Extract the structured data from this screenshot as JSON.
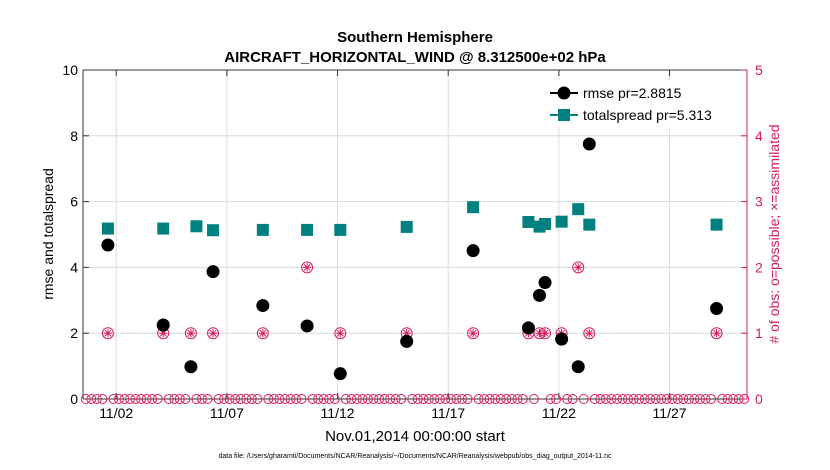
{
  "chart_data": {
    "type": "scatter",
    "title_line1": "Southern Hemisphere",
    "title_line2": "AIRCRAFT_HORIZONTAL_WIND @ 8.312500e+02 hPa",
    "xlabel": "Nov.01,2014 00:00:00 start",
    "ylabel_left": "rmse and totalspread",
    "ylabel_right": "# of obs: o=possible; ×=assimilated",
    "xlim": [
      0.5,
      30.5
    ],
    "ylim_left": [
      0,
      10
    ],
    "ylim_right": [
      0,
      5
    ],
    "x_ticks": [
      {
        "value": 2,
        "label": "11/02"
      },
      {
        "value": 7,
        "label": "11/07"
      },
      {
        "value": 12,
        "label": "11/12"
      },
      {
        "value": 17,
        "label": "11/17"
      },
      {
        "value": 22,
        "label": "11/22"
      },
      {
        "value": 27,
        "label": "11/27"
      }
    ],
    "y_ticks_left": [
      {
        "value": 0,
        "label": "0"
      },
      {
        "value": 2,
        "label": "2"
      },
      {
        "value": 4,
        "label": "4"
      },
      {
        "value": 6,
        "label": "6"
      },
      {
        "value": 8,
        "label": "8"
      },
      {
        "value": 10,
        "label": "10"
      }
    ],
    "y_ticks_right": [
      {
        "value": 0,
        "label": "0"
      },
      {
        "value": 1,
        "label": "1"
      },
      {
        "value": 2,
        "label": "2"
      },
      {
        "value": 3,
        "label": "3"
      },
      {
        "value": 4,
        "label": "4"
      },
      {
        "value": 5,
        "label": "5"
      }
    ],
    "legend": [
      {
        "name": "rmse pr=2.8815",
        "color": "#000000",
        "marker": "circle"
      },
      {
        "name": "totalspread pr=5.313",
        "color": "#008080",
        "marker": "square"
      }
    ],
    "series": [
      {
        "name": "rmse",
        "color": "#000000",
        "x": [
          1.625,
          4.125,
          5.375,
          6.375,
          8.625,
          10.625,
          12.125,
          15.125,
          18.125,
          20.625,
          21.125,
          21.375,
          22.125,
          22.875,
          23.375,
          29.125
        ],
        "y": [
          4.68,
          2.25,
          0.98,
          3.87,
          2.84,
          2.22,
          0.77,
          1.75,
          4.51,
          2.16,
          3.15,
          3.54,
          1.82,
          0.98,
          7.75,
          2.75
        ]
      },
      {
        "name": "totalspread",
        "color": "#008080",
        "x": [
          1.625,
          4.125,
          5.625,
          6.375,
          8.625,
          10.625,
          12.125,
          15.125,
          18.125,
          20.625,
          21.125,
          21.375,
          22.125,
          22.875,
          23.375,
          29.125
        ],
        "y": [
          5.18,
          5.18,
          5.25,
          5.13,
          5.14,
          5.14,
          5.14,
          5.23,
          5.83,
          5.38,
          5.24,
          5.32,
          5.39,
          5.77,
          5.3,
          5.3
        ]
      },
      {
        "name": "obs possible/assimilated",
        "color": "#d81b60",
        "x": [
          1.625,
          4.125,
          5.375,
          6.375,
          8.625,
          10.625,
          12.125,
          15.125,
          18.125,
          20.625,
          21.125,
          21.375,
          22.125,
          22.875,
          23.375,
          29.125
        ],
        "y": [
          1,
          1,
          1,
          1,
          1,
          2,
          1,
          1,
          1,
          1,
          1,
          1,
          1,
          2,
          1,
          1
        ]
      }
    ]
  },
  "footer": "data file: /Users/gharamti/Documents/NCAR/Reanalysis/~/Documents/NCAR/Reanalysis/webpub/obs_diag_output_2014-11.nc"
}
